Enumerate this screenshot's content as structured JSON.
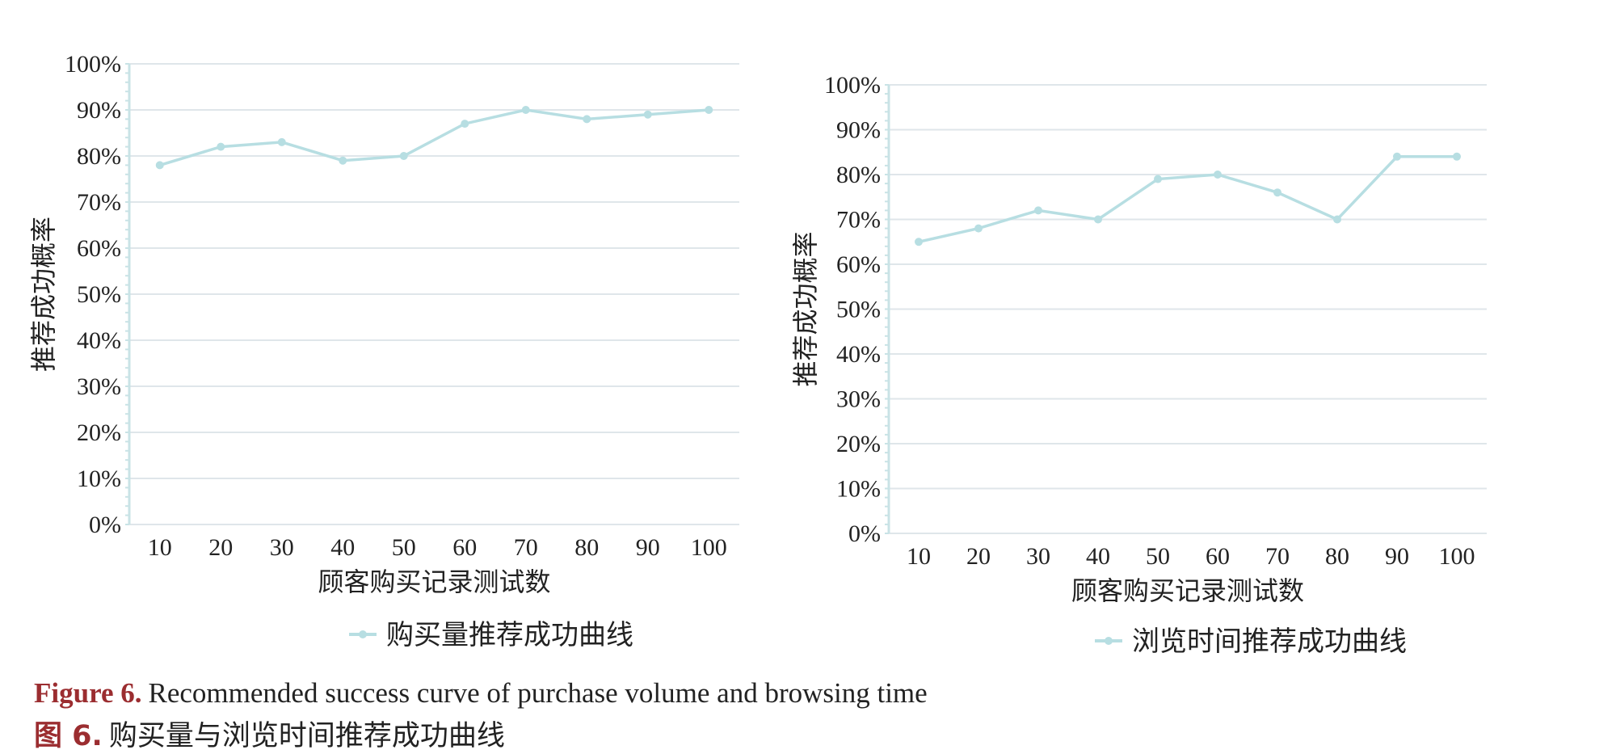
{
  "chart_data": [
    {
      "type": "line",
      "categories": [
        "10",
        "20",
        "30",
        "40",
        "50",
        "60",
        "70",
        "80",
        "90",
        "100"
      ],
      "series": [
        {
          "name": "购买量推荐成功曲线",
          "values": [
            78,
            82,
            83,
            79,
            80,
            87,
            90,
            88,
            89,
            90
          ]
        }
      ],
      "xlabel": "顾客购买记录测试数",
      "ylabel": "推荐成功概率",
      "ylim": [
        0,
        100
      ],
      "yticks": [
        "0%",
        "10%",
        "20%",
        "30%",
        "40%",
        "50%",
        "60%",
        "70%",
        "80%",
        "90%",
        "100%"
      ],
      "grid": true,
      "legend": "bottom",
      "color": "#b7dee2"
    },
    {
      "type": "line",
      "categories": [
        "10",
        "20",
        "30",
        "40",
        "50",
        "60",
        "70",
        "80",
        "90",
        "100"
      ],
      "series": [
        {
          "name": "浏览时间推荐成功曲线",
          "values": [
            65,
            68,
            72,
            70,
            79,
            80,
            76,
            70,
            84,
            84
          ]
        }
      ],
      "xlabel": "顾客购买记录测试数",
      "ylabel": "推荐成功概率",
      "ylim": [
        0,
        100
      ],
      "yticks": [
        "0%",
        "10%",
        "20%",
        "30%",
        "40%",
        "50%",
        "60%",
        "70%",
        "80%",
        "90%",
        "100%"
      ],
      "grid": true,
      "legend": "bottom",
      "color": "#b7dee2"
    }
  ],
  "caption": {
    "en_label": "Figure 6.",
    "en_text": "Recommended success curve of purchase volume and browsing time",
    "zh_label": "图 6.",
    "zh_text": "购买量与浏览时间推荐成功曲线"
  }
}
